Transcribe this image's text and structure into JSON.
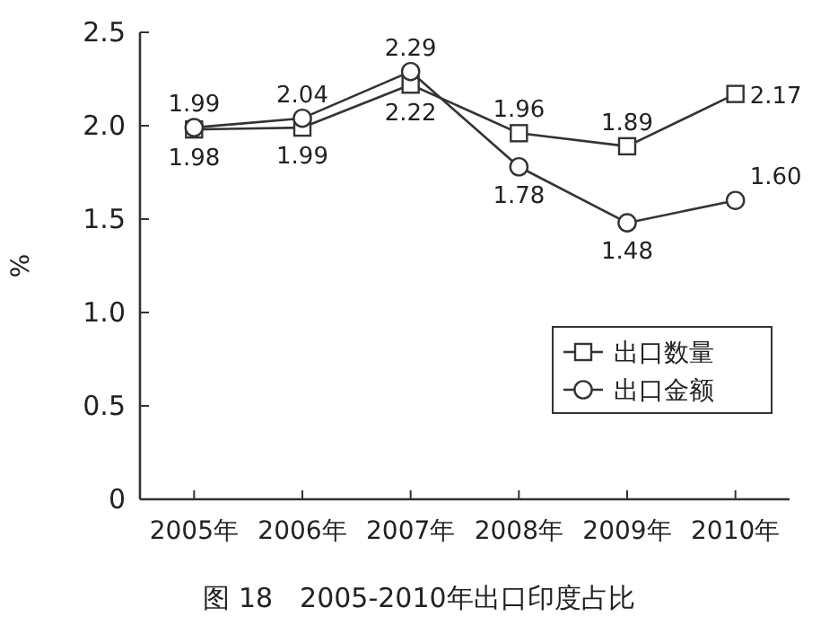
{
  "chart_data": {
    "type": "line",
    "title": "图 18　2005-2010年出口印度占比",
    "ylabel": "%",
    "categories": [
      "2005年",
      "2006年",
      "2007年",
      "2008年",
      "2009年",
      "2010年"
    ],
    "series": [
      {
        "name": "出口数量",
        "color": "#333333",
        "marker": "square",
        "values": [
          1.98,
          1.99,
          2.22,
          1.96,
          1.89,
          2.17
        ],
        "value_labels": [
          "1.98",
          "1.99",
          "2.22",
          "1.96",
          "1.89",
          "2.17"
        ]
      },
      {
        "name": "出口金额",
        "color": "#333333",
        "marker": "circle",
        "values": [
          1.99,
          2.04,
          2.29,
          1.78,
          1.48,
          1.6
        ],
        "value_labels": [
          "1.99",
          "2.04",
          "2.29",
          "1.78",
          "1.48",
          "1.60"
        ]
      }
    ],
    "ylim": [
      0,
      2.5
    ],
    "yticks": [
      {
        "value": 0,
        "label": "0"
      },
      {
        "value": 0.5,
        "label": "0.5"
      },
      {
        "value": 1,
        "label": "1.0"
      },
      {
        "value": 1.5,
        "label": "1.5"
      },
      {
        "value": 2,
        "label": "2.0"
      },
      {
        "value": 2.5,
        "label": "2.5"
      }
    ],
    "legend": "bottom right",
    "grid": false,
    "line_style": "solid"
  }
}
